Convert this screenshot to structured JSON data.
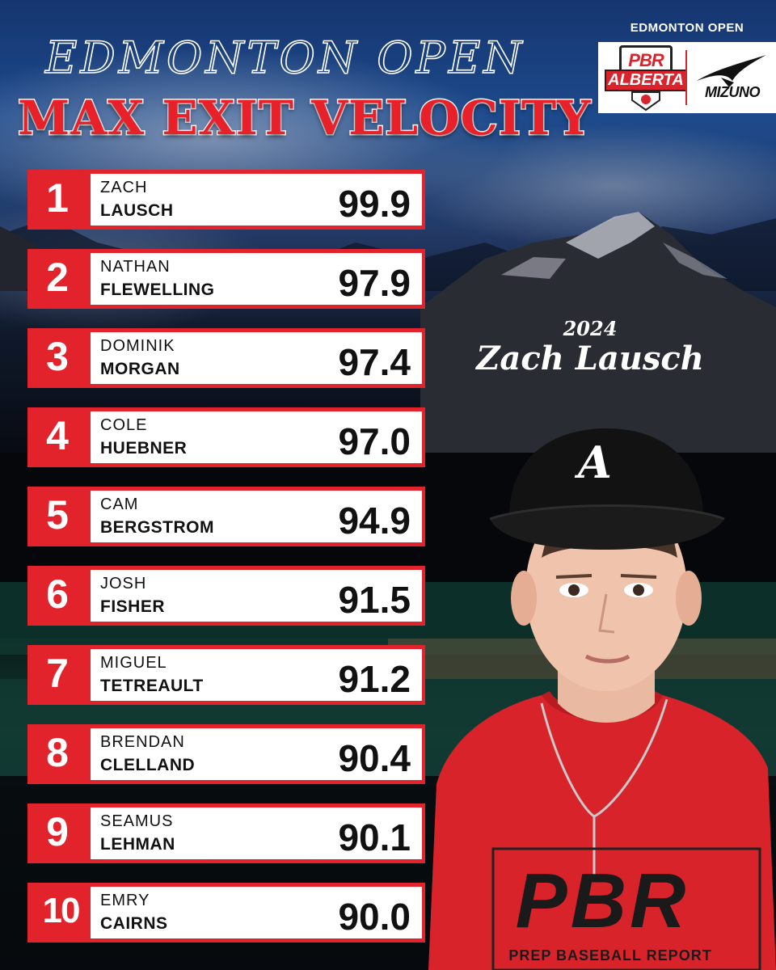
{
  "header": {
    "event_script": "EDMONTON OPEN",
    "title": "MAX EXIT VELOCITY"
  },
  "logos": {
    "caption": "EDMONTON OPEN",
    "pbr": "PBR",
    "alberta": "ALBERTA",
    "mizuno": "MIZUNO"
  },
  "leaderboard": [
    {
      "rank": "1",
      "first": "ZACH",
      "last": "LAUSCH",
      "value": "99.9"
    },
    {
      "rank": "2",
      "first": "NATHAN",
      "last": "FLEWELLING",
      "value": "97.9"
    },
    {
      "rank": "3",
      "first": "DOMINIK",
      "last": "MORGAN",
      "value": "97.4"
    },
    {
      "rank": "4",
      "first": "COLE",
      "last": "HUEBNER",
      "value": "97.0"
    },
    {
      "rank": "5",
      "first": "CAM",
      "last": "BERGSTROM",
      "value": "94.9"
    },
    {
      "rank": "6",
      "first": "JOSH",
      "last": "FISHER",
      "value": "91.5"
    },
    {
      "rank": "7",
      "first": "MIGUEL",
      "last": "TETREAULT",
      "value": "91.2"
    },
    {
      "rank": "8",
      "first": "BRENDAN",
      "last": "CLELLAND",
      "value": "90.4"
    },
    {
      "rank": "9",
      "first": "SEAMUS",
      "last": "LEHMAN",
      "value": "90.1"
    },
    {
      "rank": "10",
      "first": "EMRY",
      "last": "CAIRNS",
      "value": "90.0"
    }
  ],
  "featured": {
    "year": "2024",
    "name": "Zach Lausch",
    "cap_logo": "A",
    "shirt_logo": "PBR",
    "shirt_text": "PREP BASEBALL REPORT"
  },
  "colors": {
    "accent_red": "#e3232b",
    "white": "#ffffff",
    "text_dark": "#111111"
  }
}
